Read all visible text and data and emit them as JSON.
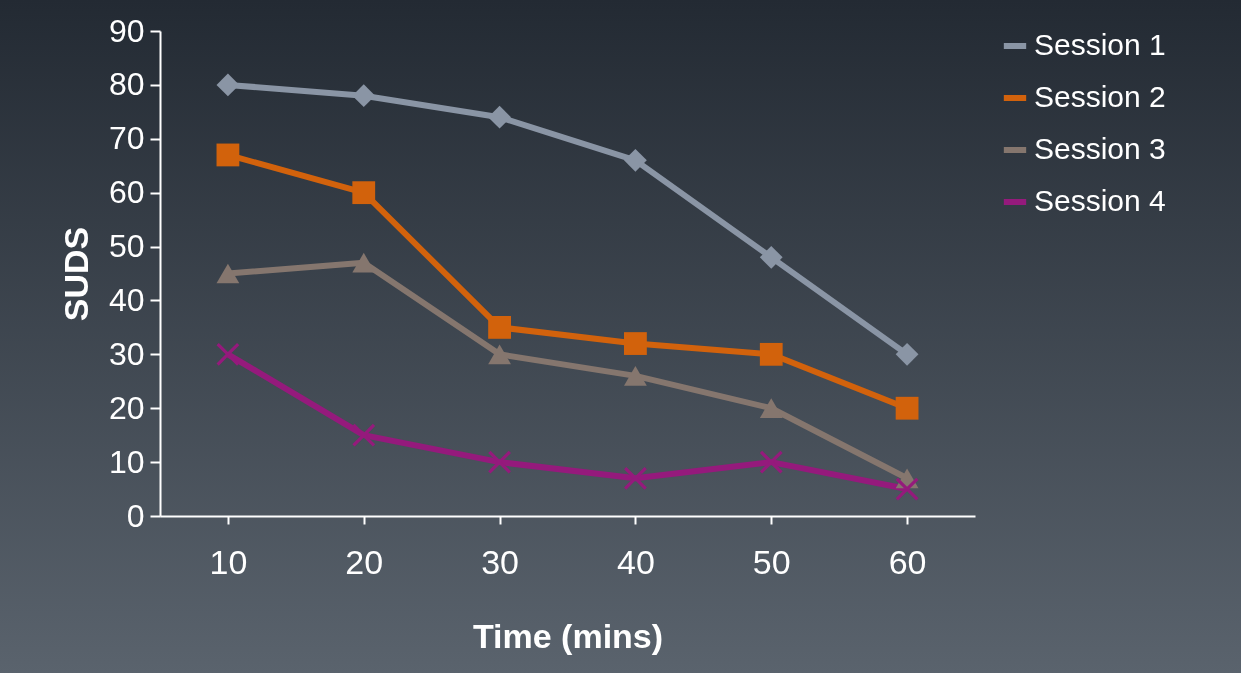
{
  "chart_data": {
    "type": "line",
    "xlabel": "Time (mins)",
    "ylabel": "SUDS",
    "categories": [
      "10",
      "20",
      "30",
      "40",
      "50",
      "60"
    ],
    "ylim": [
      0,
      90
    ],
    "yticks": [
      0,
      10,
      20,
      30,
      40,
      50,
      60,
      70,
      80,
      90
    ],
    "grid": false,
    "legend": "right",
    "line_style": "solid",
    "series": [
      {
        "name": "Session 1",
        "color": "#8a95a5",
        "marker": "diamond",
        "values": [
          80,
          78,
          74,
          66,
          48,
          30
        ]
      },
      {
        "name": "Session 2",
        "color": "#d2620c",
        "marker": "square",
        "values": [
          67,
          60,
          35,
          32,
          30,
          20
        ]
      },
      {
        "name": "Session 3",
        "color": "#85766e",
        "marker": "triangle",
        "values": [
          45,
          47,
          30,
          26,
          20,
          7
        ]
      },
      {
        "name": "Session 4",
        "color": "#951a7c",
        "marker": "cross",
        "values": [
          30,
          15,
          10,
          7,
          10,
          5
        ]
      }
    ]
  }
}
